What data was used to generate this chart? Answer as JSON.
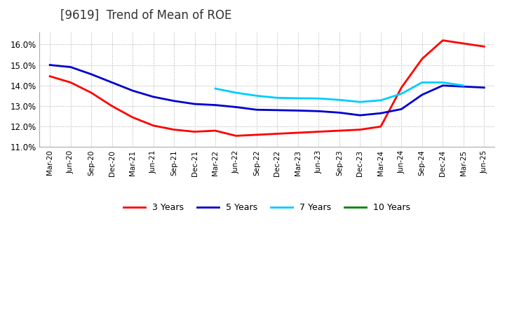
{
  "title": "[9619]  Trend of Mean of ROE",
  "ylim": [
    0.11,
    0.166
  ],
  "yticks": [
    0.11,
    0.12,
    0.13,
    0.14,
    0.15,
    0.16
  ],
  "ytick_labels": [
    "11.0%",
    "12.0%",
    "13.0%",
    "14.0%",
    "15.0%",
    "16.0%"
  ],
  "x_labels": [
    "Mar-20",
    "Jun-20",
    "Sep-20",
    "Dec-20",
    "Mar-21",
    "Jun-21",
    "Sep-21",
    "Dec-21",
    "Mar-22",
    "Jun-22",
    "Sep-22",
    "Dec-22",
    "Mar-23",
    "Jun-23",
    "Sep-23",
    "Dec-23",
    "Mar-24",
    "Jun-24",
    "Sep-24",
    "Dec-24",
    "Mar-25",
    "Jun-25"
  ],
  "color_3yr": "#FF0000",
  "color_5yr": "#0000CD",
  "color_7yr": "#00CCFF",
  "color_10yr": "#008000",
  "series_3yr": [
    0.1445,
    0.1415,
    0.1365,
    0.13,
    0.1245,
    0.1205,
    0.1185,
    0.1175,
    0.118,
    0.1155,
    0.116,
    0.1165,
    0.117,
    0.1175,
    0.118,
    0.1185,
    0.12,
    0.139,
    0.153,
    0.162,
    0.1605,
    0.159
  ],
  "series_5yr": [
    0.15,
    0.149,
    0.1455,
    0.1415,
    0.1375,
    0.1345,
    0.1325,
    0.131,
    0.1305,
    0.1295,
    0.1282,
    0.128,
    0.1278,
    0.1275,
    0.1268,
    0.1255,
    0.1265,
    0.1285,
    0.1355,
    0.14,
    0.1395,
    0.139
  ],
  "series_7yr": [
    null,
    null,
    null,
    null,
    null,
    null,
    null,
    null,
    0.1385,
    0.1365,
    0.135,
    0.134,
    0.1338,
    0.1337,
    0.133,
    0.132,
    0.1328,
    0.136,
    0.1415,
    0.1415,
    0.14,
    null
  ],
  "series_10yr": [
    null,
    null,
    null,
    null,
    null,
    null,
    null,
    null,
    null,
    null,
    null,
    null,
    null,
    null,
    null,
    null,
    null,
    null,
    null,
    null,
    null,
    null
  ],
  "background_color": "#FFFFFF",
  "grid_color": "#AAAAAA",
  "title_fontsize": 12,
  "line_width": 2.0
}
